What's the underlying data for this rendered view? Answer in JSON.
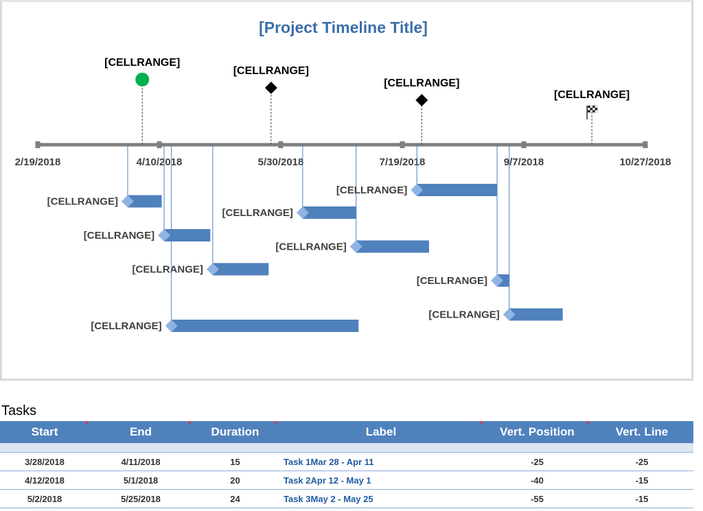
{
  "chart_data": {
    "type": "timeline",
    "title": "[Project Timeline Title]",
    "axis": {
      "min": "2/19/2018",
      "max": "10/27/2018",
      "tick_labels": [
        "2/19/2018",
        "4/10/2018",
        "5/30/2018",
        "7/19/2018",
        "9/7/2018",
        "10/27/2018"
      ]
    },
    "milestones": [
      {
        "label": "[CELLRANGE]",
        "date": "4/3/2018",
        "marker": "green-circle",
        "height": 95
      },
      {
        "label": "[CELLRANGE]",
        "date": "5/26/2018",
        "marker": "diamond",
        "height": 83
      },
      {
        "label": "[CELLRANGE]",
        "date": "7/27/2018",
        "marker": "diamond",
        "height": 65
      },
      {
        "label": "[CELLRANGE]",
        "date": "10/5/2018",
        "marker": "flag",
        "height": 48
      }
    ],
    "tasks": [
      {
        "label": "[CELLRANGE]",
        "start": "3/28/2018",
        "end": "4/11/2018",
        "vert_position": -25
      },
      {
        "label": "[CELLRANGE]",
        "start": "4/12/2018",
        "end": "5/1/2018",
        "vert_position": -40
      },
      {
        "label": "[CELLRANGE]",
        "start": "5/2/2018",
        "end": "5/25/2018",
        "vert_position": -55
      },
      {
        "label": "[CELLRANGE]",
        "start": "4/15/2018",
        "end": "7/1/2018",
        "vert_position": -80
      },
      {
        "label": "[CELLRANGE]",
        "start": "6/8/2018",
        "end": "6/30/2018",
        "vert_position": -30
      },
      {
        "label": "[CELLRANGE]",
        "start": "6/30/2018",
        "end": "7/30/2018",
        "vert_position": -45
      },
      {
        "label": "[CELLRANGE]",
        "start": "7/25/2018",
        "end": "8/27/2018",
        "vert_position": -20
      },
      {
        "label": "[CELLRANGE]",
        "start": "8/27/2018",
        "end": "9/1/2018",
        "vert_position": -60
      },
      {
        "label": "[CELLRANGE]",
        "start": "9/1/2018",
        "end": "9/23/2018",
        "vert_position": -75
      }
    ],
    "colors": {
      "axis": "#7f7f7f",
      "bar": "#4f81bd",
      "bar_cap": "#8eb4e3",
      "milestone_green": "#00b050",
      "title": "#3b6ea8"
    }
  },
  "tasks_section": {
    "title": "Tasks",
    "headers": [
      "Start",
      "End",
      "Duration",
      "Label",
      "Vert. Position",
      "Vert. Line"
    ],
    "rows": [
      {
        "start": "3/28/2018",
        "end": "4/11/2018",
        "duration": "15",
        "label": "Task 1Mar 28 - Apr 11",
        "vert_position": "-25",
        "vert_line": "-25"
      },
      {
        "start": "4/12/2018",
        "end": "5/1/2018",
        "duration": "20",
        "label": "Task 2Apr 12 - May 1",
        "vert_position": "-40",
        "vert_line": "-15"
      },
      {
        "start": "5/2/2018",
        "end": "5/25/2018",
        "duration": "24",
        "label": "Task 3May 2 - May 25",
        "vert_position": "-55",
        "vert_line": "-15"
      }
    ]
  }
}
